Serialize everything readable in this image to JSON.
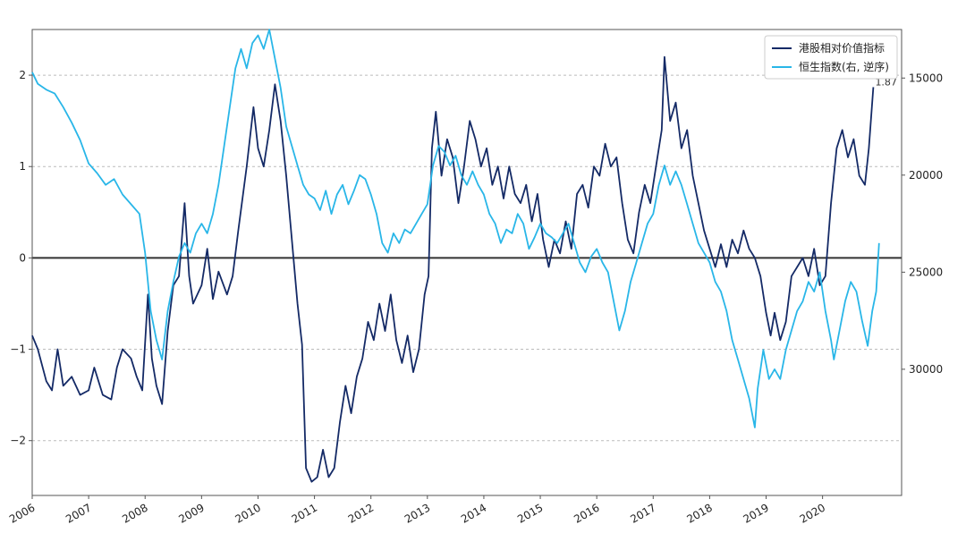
{
  "chart_data": {
    "type": "line",
    "title": "",
    "xlabel": "",
    "ylabel_left": "",
    "ylabel_right": "",
    "x_tick_labels": [
      "2006",
      "2007",
      "2008",
      "2009",
      "2010",
      "2011",
      "2012",
      "2013",
      "2014",
      "2015",
      "2016",
      "2017",
      "2018",
      "2019",
      "2020"
    ],
    "y_left_ticks": [
      -2,
      -1,
      0,
      1,
      2
    ],
    "y_left_range": [
      -2.6,
      2.5
    ],
    "y_right_ticks": [
      15000,
      20000,
      25000,
      30000
    ],
    "y_right_range": [
      12500,
      36500
    ],
    "y_right_inverted": true,
    "zero_line": 0,
    "grid": "horizontal-dashed",
    "legend_position": "top-right",
    "annotation": "1.87",
    "series": [
      {
        "name": "港股相对价值指标",
        "axis": "left",
        "color": "#142a66",
        "points": [
          [
            2006.0,
            -0.85
          ],
          [
            2006.1,
            -1.0
          ],
          [
            2006.25,
            -1.35
          ],
          [
            2006.35,
            -1.45
          ],
          [
            2006.45,
            -1.0
          ],
          [
            2006.55,
            -1.4
          ],
          [
            2006.7,
            -1.3
          ],
          [
            2006.85,
            -1.5
          ],
          [
            2007.0,
            -1.45
          ],
          [
            2007.1,
            -1.2
          ],
          [
            2007.25,
            -1.5
          ],
          [
            2007.4,
            -1.55
          ],
          [
            2007.5,
            -1.2
          ],
          [
            2007.6,
            -1.0
          ],
          [
            2007.75,
            -1.1
          ],
          [
            2007.85,
            -1.3
          ],
          [
            2007.95,
            -1.45
          ],
          [
            2008.05,
            -0.4
          ],
          [
            2008.12,
            -1.1
          ],
          [
            2008.2,
            -1.4
          ],
          [
            2008.3,
            -1.6
          ],
          [
            2008.4,
            -0.8
          ],
          [
            2008.5,
            -0.3
          ],
          [
            2008.6,
            -0.2
          ],
          [
            2008.7,
            0.6
          ],
          [
            2008.78,
            -0.2
          ],
          [
            2008.85,
            -0.5
          ],
          [
            2009.0,
            -0.3
          ],
          [
            2009.1,
            0.1
          ],
          [
            2009.2,
            -0.45
          ],
          [
            2009.3,
            -0.15
          ],
          [
            2009.45,
            -0.4
          ],
          [
            2009.55,
            -0.2
          ],
          [
            2009.65,
            0.3
          ],
          [
            2009.8,
            1.0
          ],
          [
            2009.92,
            1.65
          ],
          [
            2010.0,
            1.2
          ],
          [
            2010.1,
            1.0
          ],
          [
            2010.2,
            1.4
          ],
          [
            2010.3,
            1.9
          ],
          [
            2010.4,
            1.5
          ],
          [
            2010.5,
            0.9
          ],
          [
            2010.6,
            0.2
          ],
          [
            2010.7,
            -0.5
          ],
          [
            2010.78,
            -0.95
          ],
          [
            2010.85,
            -2.3
          ],
          [
            2010.95,
            -2.45
          ],
          [
            2011.05,
            -2.4
          ],
          [
            2011.15,
            -2.1
          ],
          [
            2011.25,
            -2.4
          ],
          [
            2011.35,
            -2.3
          ],
          [
            2011.45,
            -1.8
          ],
          [
            2011.55,
            -1.4
          ],
          [
            2011.65,
            -1.7
          ],
          [
            2011.75,
            -1.3
          ],
          [
            2011.85,
            -1.1
          ],
          [
            2011.95,
            -0.7
          ],
          [
            2012.05,
            -0.9
          ],
          [
            2012.15,
            -0.5
          ],
          [
            2012.25,
            -0.8
          ],
          [
            2012.35,
            -0.4
          ],
          [
            2012.45,
            -0.9
          ],
          [
            2012.55,
            -1.15
          ],
          [
            2012.65,
            -0.85
          ],
          [
            2012.75,
            -1.25
          ],
          [
            2012.85,
            -1.0
          ],
          [
            2012.95,
            -0.4
          ],
          [
            2013.02,
            -0.2
          ],
          [
            2013.08,
            1.2
          ],
          [
            2013.15,
            1.6
          ],
          [
            2013.25,
            0.9
          ],
          [
            2013.35,
            1.3
          ],
          [
            2013.45,
            1.1
          ],
          [
            2013.55,
            0.6
          ],
          [
            2013.65,
            1.0
          ],
          [
            2013.75,
            1.5
          ],
          [
            2013.85,
            1.3
          ],
          [
            2013.95,
            1.0
          ],
          [
            2014.05,
            1.2
          ],
          [
            2014.15,
            0.8
          ],
          [
            2014.25,
            1.0
          ],
          [
            2014.35,
            0.65
          ],
          [
            2014.45,
            1.0
          ],
          [
            2014.55,
            0.7
          ],
          [
            2014.65,
            0.6
          ],
          [
            2014.75,
            0.8
          ],
          [
            2014.85,
            0.4
          ],
          [
            2014.95,
            0.7
          ],
          [
            2015.05,
            0.2
          ],
          [
            2015.15,
            -0.1
          ],
          [
            2015.25,
            0.2
          ],
          [
            2015.35,
            0.05
          ],
          [
            2015.45,
            0.4
          ],
          [
            2015.55,
            0.1
          ],
          [
            2015.65,
            0.7
          ],
          [
            2015.75,
            0.8
          ],
          [
            2015.85,
            0.55
          ],
          [
            2015.95,
            1.0
          ],
          [
            2016.05,
            0.9
          ],
          [
            2016.15,
            1.25
          ],
          [
            2016.25,
            1.0
          ],
          [
            2016.35,
            1.1
          ],
          [
            2016.45,
            0.6
          ],
          [
            2016.55,
            0.2
          ],
          [
            2016.65,
            0.05
          ],
          [
            2016.75,
            0.5
          ],
          [
            2016.85,
            0.8
          ],
          [
            2016.95,
            0.6
          ],
          [
            2017.05,
            1.0
          ],
          [
            2017.15,
            1.4
          ],
          [
            2017.2,
            2.2
          ],
          [
            2017.3,
            1.5
          ],
          [
            2017.4,
            1.7
          ],
          [
            2017.5,
            1.2
          ],
          [
            2017.6,
            1.4
          ],
          [
            2017.7,
            0.9
          ],
          [
            2017.8,
            0.6
          ],
          [
            2017.9,
            0.3
          ],
          [
            2018.0,
            0.1
          ],
          [
            2018.1,
            -0.1
          ],
          [
            2018.2,
            0.15
          ],
          [
            2018.3,
            -0.1
          ],
          [
            2018.4,
            0.2
          ],
          [
            2018.5,
            0.05
          ],
          [
            2018.6,
            0.3
          ],
          [
            2018.7,
            0.1
          ],
          [
            2018.8,
            0.0
          ],
          [
            2018.9,
            -0.2
          ],
          [
            2019.0,
            -0.6
          ],
          [
            2019.08,
            -0.85
          ],
          [
            2019.15,
            -0.6
          ],
          [
            2019.25,
            -0.9
          ],
          [
            2019.35,
            -0.7
          ],
          [
            2019.45,
            -0.2
          ],
          [
            2019.55,
            -0.1
          ],
          [
            2019.65,
            0.0
          ],
          [
            2019.75,
            -0.2
          ],
          [
            2019.85,
            0.1
          ],
          [
            2019.95,
            -0.3
          ],
          [
            2020.05,
            -0.2
          ],
          [
            2020.15,
            0.6
          ],
          [
            2020.25,
            1.2
          ],
          [
            2020.35,
            1.4
          ],
          [
            2020.45,
            1.1
          ],
          [
            2020.55,
            1.3
          ],
          [
            2020.65,
            0.9
          ],
          [
            2020.75,
            0.8
          ],
          [
            2020.82,
            1.2
          ],
          [
            2020.9,
            1.87
          ]
        ]
      },
      {
        "name": "恒生指数(右, 逆序)",
        "axis": "right",
        "color": "#29b6e8",
        "points": [
          [
            2006.0,
            14700
          ],
          [
            2006.1,
            15300
          ],
          [
            2006.25,
            15600
          ],
          [
            2006.4,
            15800
          ],
          [
            2006.55,
            16500
          ],
          [
            2006.7,
            17300
          ],
          [
            2006.85,
            18200
          ],
          [
            2007.0,
            19400
          ],
          [
            2007.15,
            19900
          ],
          [
            2007.3,
            20500
          ],
          [
            2007.45,
            20200
          ],
          [
            2007.6,
            21000
          ],
          [
            2007.75,
            21500
          ],
          [
            2007.9,
            22000
          ],
          [
            2008.0,
            24000
          ],
          [
            2008.1,
            27000
          ],
          [
            2008.2,
            28500
          ],
          [
            2008.3,
            29500
          ],
          [
            2008.4,
            27000
          ],
          [
            2008.5,
            25500
          ],
          [
            2008.6,
            24200
          ],
          [
            2008.7,
            23500
          ],
          [
            2008.8,
            24000
          ],
          [
            2008.9,
            23000
          ],
          [
            2009.0,
            22500
          ],
          [
            2009.1,
            23000
          ],
          [
            2009.2,
            22000
          ],
          [
            2009.3,
            20500
          ],
          [
            2009.4,
            18500
          ],
          [
            2009.5,
            16500
          ],
          [
            2009.6,
            14500
          ],
          [
            2009.7,
            13500
          ],
          [
            2009.8,
            14500
          ],
          [
            2009.9,
            13200
          ],
          [
            2010.0,
            12800
          ],
          [
            2010.1,
            13500
          ],
          [
            2010.2,
            12500
          ],
          [
            2010.3,
            14000
          ],
          [
            2010.4,
            15500
          ],
          [
            2010.5,
            17500
          ],
          [
            2010.6,
            18500
          ],
          [
            2010.7,
            19500
          ],
          [
            2010.8,
            20500
          ],
          [
            2010.9,
            21000
          ],
          [
            2011.0,
            21200
          ],
          [
            2011.1,
            21800
          ],
          [
            2011.2,
            20800
          ],
          [
            2011.3,
            22000
          ],
          [
            2011.4,
            21000
          ],
          [
            2011.5,
            20500
          ],
          [
            2011.6,
            21500
          ],
          [
            2011.7,
            20800
          ],
          [
            2011.8,
            20000
          ],
          [
            2011.9,
            20200
          ],
          [
            2012.0,
            21000
          ],
          [
            2012.1,
            22000
          ],
          [
            2012.2,
            23500
          ],
          [
            2012.3,
            24000
          ],
          [
            2012.4,
            23000
          ],
          [
            2012.5,
            23500
          ],
          [
            2012.6,
            22800
          ],
          [
            2012.7,
            23000
          ],
          [
            2012.8,
            22500
          ],
          [
            2012.9,
            22000
          ],
          [
            2013.0,
            21500
          ],
          [
            2013.1,
            19500
          ],
          [
            2013.2,
            18500
          ],
          [
            2013.3,
            18800
          ],
          [
            2013.4,
            19500
          ],
          [
            2013.5,
            19000
          ],
          [
            2013.6,
            20000
          ],
          [
            2013.7,
            20500
          ],
          [
            2013.8,
            19800
          ],
          [
            2013.9,
            20500
          ],
          [
            2014.0,
            21000
          ],
          [
            2014.1,
            22000
          ],
          [
            2014.2,
            22500
          ],
          [
            2014.3,
            23500
          ],
          [
            2014.4,
            22800
          ],
          [
            2014.5,
            23000
          ],
          [
            2014.6,
            22000
          ],
          [
            2014.7,
            22500
          ],
          [
            2014.8,
            23800
          ],
          [
            2014.9,
            23200
          ],
          [
            2015.0,
            22500
          ],
          [
            2015.1,
            23000
          ],
          [
            2015.2,
            23200
          ],
          [
            2015.3,
            23500
          ],
          [
            2015.4,
            23000
          ],
          [
            2015.5,
            22500
          ],
          [
            2015.6,
            23500
          ],
          [
            2015.7,
            24500
          ],
          [
            2015.8,
            25000
          ],
          [
            2015.9,
            24200
          ],
          [
            2016.0,
            23800
          ],
          [
            2016.1,
            24500
          ],
          [
            2016.2,
            25000
          ],
          [
            2016.3,
            26500
          ],
          [
            2016.4,
            28000
          ],
          [
            2016.5,
            27000
          ],
          [
            2016.6,
            25500
          ],
          [
            2016.7,
            24500
          ],
          [
            2016.8,
            23500
          ],
          [
            2016.9,
            22500
          ],
          [
            2017.0,
            22000
          ],
          [
            2017.1,
            20500
          ],
          [
            2017.2,
            19500
          ],
          [
            2017.3,
            20500
          ],
          [
            2017.4,
            19800
          ],
          [
            2017.5,
            20500
          ],
          [
            2017.6,
            21500
          ],
          [
            2017.7,
            22500
          ],
          [
            2017.8,
            23500
          ],
          [
            2017.9,
            24000
          ],
          [
            2018.0,
            24500
          ],
          [
            2018.1,
            25500
          ],
          [
            2018.2,
            26000
          ],
          [
            2018.3,
            27000
          ],
          [
            2018.4,
            28500
          ],
          [
            2018.5,
            29500
          ],
          [
            2018.6,
            30500
          ],
          [
            2018.7,
            31500
          ],
          [
            2018.8,
            33000
          ],
          [
            2018.85,
            31000
          ],
          [
            2018.95,
            29000
          ],
          [
            2019.05,
            30500
          ],
          [
            2019.15,
            30000
          ],
          [
            2019.25,
            30500
          ],
          [
            2019.35,
            29000
          ],
          [
            2019.45,
            28000
          ],
          [
            2019.55,
            27000
          ],
          [
            2019.65,
            26500
          ],
          [
            2019.75,
            25500
          ],
          [
            2019.85,
            26000
          ],
          [
            2019.95,
            25000
          ],
          [
            2020.05,
            27000
          ],
          [
            2020.15,
            28500
          ],
          [
            2020.2,
            29500
          ],
          [
            2020.3,
            28000
          ],
          [
            2020.4,
            26500
          ],
          [
            2020.5,
            25500
          ],
          [
            2020.6,
            26000
          ],
          [
            2020.7,
            27500
          ],
          [
            2020.8,
            28800
          ],
          [
            2020.88,
            27000
          ],
          [
            2020.95,
            26000
          ],
          [
            2021.0,
            23500
          ]
        ]
      }
    ]
  }
}
